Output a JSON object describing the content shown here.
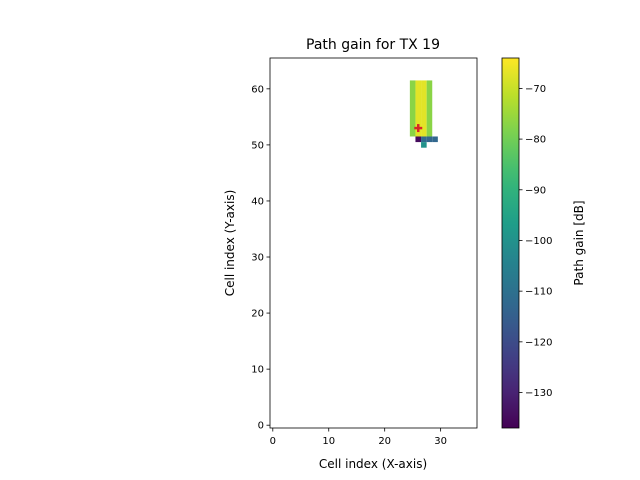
{
  "chart_data": {
    "type": "heatmap",
    "title": "Path gain for TX 19",
    "xlabel": "Cell index (X-axis)",
    "ylabel": "Cell index (Y-axis)",
    "xlim": [
      -0.5,
      36.5
    ],
    "ylim": [
      -0.5,
      65.5
    ],
    "xticks": [
      0,
      10,
      20,
      30
    ],
    "yticks": [
      0,
      10,
      20,
      30,
      40,
      50,
      60
    ],
    "colorbar": {
      "label": "Path gain [dB]",
      "range": [
        -137,
        -64
      ],
      "ticks": [
        -70,
        -80,
        -90,
        -100,
        -110,
        -120,
        -130
      ],
      "colormap": "viridis"
    },
    "transmitter": {
      "x": 26,
      "y": 53,
      "marker": "plus",
      "color": "#d62728"
    },
    "cells": [
      {
        "x": 25,
        "y_from": 52,
        "y_to": 61,
        "value": -77
      },
      {
        "x": 26,
        "y_from": 52,
        "y_to": 61,
        "value": -67
      },
      {
        "x": 27,
        "y_from": 52,
        "y_to": 61,
        "value": -67
      },
      {
        "x": 28,
        "y_from": 52,
        "y_to": 61,
        "value": -77
      },
      {
        "x": 26,
        "y_from": 51,
        "y_to": 51,
        "value": -135
      },
      {
        "x": 27,
        "y_from": 51,
        "y_to": 51,
        "value": -112
      },
      {
        "x": 28,
        "y_from": 51,
        "y_to": 51,
        "value": -113
      },
      {
        "x": 29,
        "y_from": 51,
        "y_to": 51,
        "value": -113
      },
      {
        "x": 27,
        "y_from": 50,
        "y_to": 50,
        "value": -100
      }
    ]
  }
}
